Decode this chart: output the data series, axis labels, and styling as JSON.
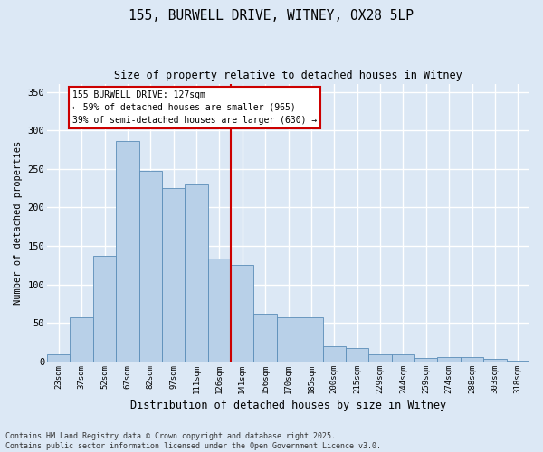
{
  "title1": "155, BURWELL DRIVE, WITNEY, OX28 5LP",
  "title2": "Size of property relative to detached houses in Witney",
  "xlabel": "Distribution of detached houses by size in Witney",
  "ylabel": "Number of detached properties",
  "bar_labels": [
    "23sqm",
    "37sqm",
    "52sqm",
    "67sqm",
    "82sqm",
    "97sqm",
    "111sqm",
    "126sqm",
    "141sqm",
    "156sqm",
    "170sqm",
    "185sqm",
    "200sqm",
    "215sqm",
    "229sqm",
    "244sqm",
    "259sqm",
    "274sqm",
    "288sqm",
    "303sqm",
    "318sqm"
  ],
  "bar_heights": [
    10,
    58,
    137,
    286,
    248,
    225,
    230,
    134,
    126,
    62,
    57,
    57,
    20,
    18,
    10,
    10,
    5,
    6,
    6,
    3,
    1
  ],
  "bar_color": "#b8d0e8",
  "bar_edge_color": "#5b8db8",
  "vline_color": "#cc0000",
  "annotation_text": "155 BURWELL DRIVE: 127sqm\n← 59% of detached houses are smaller (965)\n39% of semi-detached houses are larger (630) →",
  "annotation_box_color": "#ffffff",
  "annotation_box_edge": "#cc0000",
  "ylim": [
    0,
    360
  ],
  "yticks": [
    0,
    50,
    100,
    150,
    200,
    250,
    300,
    350
  ],
  "bg_color": "#dce8f5",
  "grid_color": "#ffffff",
  "footer": "Contains HM Land Registry data © Crown copyright and database right 2025.\nContains public sector information licensed under the Open Government Licence v3.0."
}
